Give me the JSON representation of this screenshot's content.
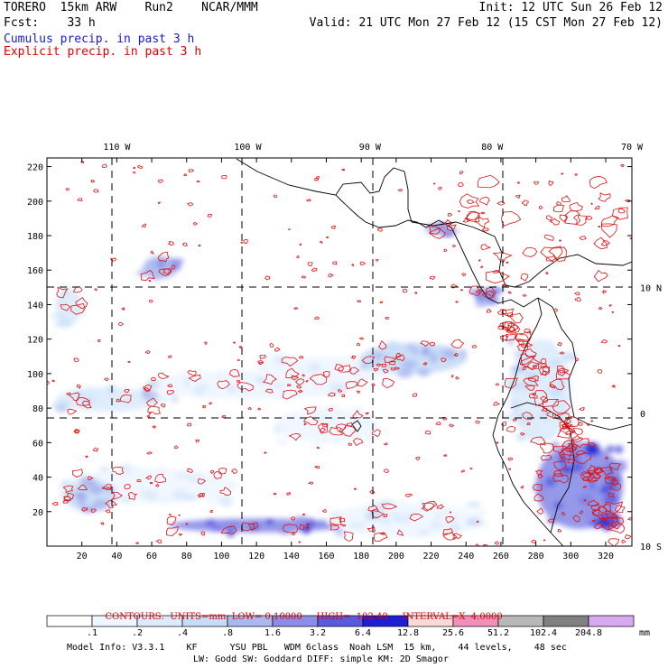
{
  "header": {
    "line1_left": "TORERO  15km ARW    Run2    NCAR/MMM",
    "line1_right": "Init: 12 UTC Sun 26 Feb 12",
    "line2_left": "Fcst:    33 h",
    "line2_right": "Valid: 21 UTC Mon 27 Feb 12 (15 CST Mon 27 Feb 12)",
    "line3": "Cumulus precip. in past 3 h",
    "line4": "Explicit precip. in past 3 h"
  },
  "chart_data": {
    "type": "heatmap",
    "title": "Cumulus / Explicit precip. in past 3 h",
    "x_grid": {
      "range": [
        0,
        335
      ],
      "ticks": [
        20,
        40,
        60,
        80,
        100,
        120,
        140,
        160,
        180,
        200,
        220,
        240,
        260,
        280,
        300,
        320
      ]
    },
    "y_grid": {
      "range": [
        0,
        225
      ],
      "ticks": [
        20,
        40,
        60,
        80,
        100,
        120,
        140,
        160,
        180,
        200,
        220
      ]
    },
    "longitudes": [
      {
        "label": "110 W",
        "x": 40
      },
      {
        "label": "100 W",
        "x": 115
      },
      {
        "label": "90 W",
        "x": 185
      },
      {
        "label": "80 W",
        "x": 255
      },
      {
        "label": "70 W",
        "x": 335
      }
    ],
    "latitudes": [
      {
        "label": "10 N",
        "y": 150
      },
      {
        "label": "0",
        "y": 77
      },
      {
        "label": "10 S",
        "y": 0
      }
    ],
    "contours": {
      "label": "CONTOURS:",
      "units": "UNITS=mm",
      "low": "LOW= 0.10000",
      "high": "HIGH=  102.40",
      "interval": "INTERVAL=X  4.0000"
    },
    "colorbar": {
      "unit": "mm",
      "labels": [
        ".1",
        ".2",
        ".4",
        ".8",
        "1.6",
        "3.2",
        "6.4",
        "12.8",
        "25.6",
        "51.2",
        "102.4",
        "204.8"
      ],
      "colors": [
        "#ffffff",
        "#f0f6ff",
        "#dcebfc",
        "#c6dcf7",
        "#aab8f0",
        "#8a8ee8",
        "#5a5ae0",
        "#1e1ed8",
        "#f8d8d8",
        "#f090b8",
        "#b8b8b8",
        "#808080",
        "#d8a8f0"
      ]
    },
    "cumulus_areas": [
      {
        "x": [
          5,
          65
        ],
        "y": [
          78,
          92
        ],
        "level": 3
      },
      {
        "x": [
          60,
          180
        ],
        "y": [
          85,
          102
        ],
        "level": 2
      },
      {
        "x": [
          120,
          200
        ],
        "y": [
          95,
          110
        ],
        "level": 2
      },
      {
        "x": [
          180,
          240
        ],
        "y": [
          100,
          118
        ],
        "level": 4
      },
      {
        "x": [
          5,
          20
        ],
        "y": [
          128,
          150
        ],
        "level": 3
      },
      {
        "x": [
          55,
          75
        ],
        "y": [
          155,
          168
        ],
        "level": 5
      },
      {
        "x": [
          220,
          232
        ],
        "y": [
          180,
          188
        ],
        "level": 5
      },
      {
        "x": [
          245,
          258
        ],
        "y": [
          140,
          150
        ],
        "level": 5
      },
      {
        "x": [
          10,
          110
        ],
        "y": [
          25,
          45
        ],
        "level": 2
      },
      {
        "x": [
          10,
          40
        ],
        "y": [
          20,
          38
        ],
        "level": 4
      },
      {
        "x": [
          70,
          170
        ],
        "y": [
          8,
          16
        ],
        "level": 6
      },
      {
        "x": [
          160,
          250
        ],
        "y": [
          5,
          25
        ],
        "level": 2
      },
      {
        "x": [
          280,
          330
        ],
        "y": [
          10,
          60
        ],
        "level": 6
      },
      {
        "x": [
          265,
          300
        ],
        "y": [
          60,
          120
        ],
        "level": 3
      },
      {
        "x": [
          130,
          190
        ],
        "y": [
          60,
          80
        ],
        "level": 1
      }
    ]
  },
  "model_info": {
    "line1": "Model Info: V3.3.1    KF      YSU PBL   WDM 6class  Noah LSM  15 km,    44 levels,    48 sec",
    "line2": "LW: Godd SW: Goddard DIFF: simple KM: 2D Smagor"
  }
}
